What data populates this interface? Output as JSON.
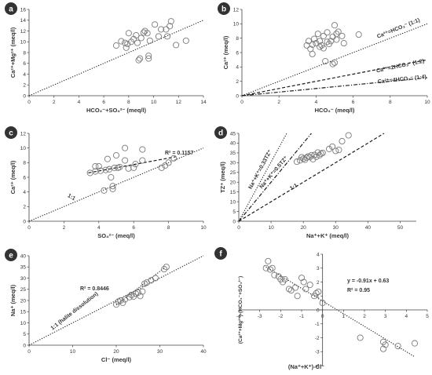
{
  "colors": {
    "marker": "#7a7a7a",
    "axis": "#404040",
    "text": "#333333",
    "badge": "#333333"
  },
  "chart_data": [
    {
      "panel": "a",
      "type": "scatter",
      "xlabel": "HCO₃⁻+SO₄²⁻ (meq/l)",
      "ylabel": "Ca²⁺+Mg²⁺ (meq/l)",
      "xlim": [
        0,
        14
      ],
      "ylim": [
        0,
        16
      ],
      "xticks": [
        0,
        2,
        4,
        6,
        8,
        10,
        12,
        14
      ],
      "yticks": [
        0,
        2,
        4,
        6,
        8,
        10,
        12,
        14,
        16
      ],
      "lines": [
        {
          "label": "",
          "style": "dotted",
          "points": [
            [
              0,
              0
            ],
            [
              14,
              14
            ]
          ]
        }
      ],
      "points": [
        [
          7.0,
          9.3
        ],
        [
          7.4,
          10.1
        ],
        [
          7.7,
          9.8
        ],
        [
          7.8,
          8.9
        ],
        [
          7.9,
          9.6
        ],
        [
          8.0,
          11.6
        ],
        [
          8.2,
          10.0
        ],
        [
          8.4,
          10.5
        ],
        [
          8.6,
          11.2
        ],
        [
          8.7,
          9.8
        ],
        [
          8.8,
          6.6
        ],
        [
          8.9,
          6.9
        ],
        [
          9.0,
          10.7
        ],
        [
          9.2,
          11.7
        ],
        [
          9.3,
          12.0
        ],
        [
          9.5,
          11.6
        ],
        [
          9.6,
          7.4
        ],
        [
          9.6,
          6.9
        ],
        [
          9.7,
          10.2
        ],
        [
          10.1,
          13.2
        ],
        [
          10.4,
          11.0
        ],
        [
          10.6,
          12.3
        ],
        [
          11.0,
          12.3
        ],
        [
          11.1,
          11.0
        ],
        [
          11.3,
          12.9
        ],
        [
          11.4,
          13.8
        ],
        [
          11.8,
          9.4
        ],
        [
          12.6,
          10.2
        ]
      ]
    },
    {
      "panel": "b",
      "type": "scatter",
      "xlabel": "HCO₃⁻ (meq/l)",
      "ylabel": "Ca²⁺ (meq/l)",
      "xlim": [
        0,
        10
      ],
      "ylim": [
        0,
        12
      ],
      "xticks": [
        0,
        2,
        4,
        6,
        8,
        10
      ],
      "yticks": [
        0,
        2,
        4,
        6,
        8,
        10,
        12
      ],
      "lines": [
        {
          "label": "Ca²⁺=HCO₃⁻ (1:1)",
          "style": "dotted",
          "points": [
            [
              0,
              0
            ],
            [
              10,
              10
            ]
          ]
        },
        {
          "label": "Ca²⁺=2HCO₃⁻ (1:2)",
          "style": "dashed",
          "points": [
            [
              0,
              0
            ],
            [
              10,
              5
            ]
          ]
        },
        {
          "label": "Ca²⁺=4HCO₃⁻ (1:4)",
          "style": "dashdot",
          "points": [
            [
              0,
              0
            ],
            [
              10,
              2.5
            ]
          ]
        }
      ],
      "points": [
        [
          3.5,
          7.0
        ],
        [
          3.6,
          7.6
        ],
        [
          3.7,
          6.5
        ],
        [
          3.8,
          5.8
        ],
        [
          3.8,
          7.1
        ],
        [
          3.9,
          7.9
        ],
        [
          4.0,
          7.3
        ],
        [
          4.1,
          8.6
        ],
        [
          4.2,
          6.8
        ],
        [
          4.2,
          7.6
        ],
        [
          4.3,
          7.0
        ],
        [
          4.4,
          8.3
        ],
        [
          4.4,
          6.6
        ],
        [
          4.5,
          4.8
        ],
        [
          4.6,
          7.5
        ],
        [
          4.6,
          8.8
        ],
        [
          4.7,
          7.2
        ],
        [
          4.8,
          7.6
        ],
        [
          4.9,
          4.4
        ],
        [
          4.9,
          8.2
        ],
        [
          5.0,
          9.8
        ],
        [
          5.0,
          4.6
        ],
        [
          5.1,
          8.6
        ],
        [
          5.1,
          7.8
        ],
        [
          5.2,
          8.9
        ],
        [
          5.4,
          8.3
        ],
        [
          5.5,
          7.3
        ],
        [
          6.3,
          8.5
        ]
      ]
    },
    {
      "panel": "c",
      "type": "scatter",
      "xlabel": "SO₄²⁻ (meq/l)",
      "ylabel": "Ca²⁺ (meq/l)",
      "xlim": [
        0,
        10
      ],
      "ylim": [
        0,
        12
      ],
      "xticks": [
        0,
        2,
        4,
        6,
        8,
        10
      ],
      "yticks": [
        0,
        2,
        4,
        6,
        8,
        10,
        12
      ],
      "annotation": "R² = 0.1157",
      "lines": [
        {
          "label": "1:1",
          "style": "dotted",
          "points": [
            [
              0,
              0
            ],
            [
              10,
              10
            ]
          ]
        },
        {
          "label": "",
          "style": "dashed",
          "points": [
            [
              3.4,
              6.6
            ],
            [
              8.4,
              8.8
            ]
          ]
        }
      ],
      "points": [
        [
          3.5,
          6.6
        ],
        [
          3.8,
          6.8
        ],
        [
          3.8,
          7.5
        ],
        [
          4.0,
          7.5
        ],
        [
          4.1,
          6.9
        ],
        [
          4.3,
          4.2
        ],
        [
          4.4,
          7.0
        ],
        [
          4.5,
          8.5
        ],
        [
          4.6,
          7.1
        ],
        [
          4.7,
          6.0
        ],
        [
          4.8,
          4.8
        ],
        [
          4.8,
          4.4
        ],
        [
          4.9,
          7.3
        ],
        [
          5.0,
          9.0
        ],
        [
          5.1,
          7.3
        ],
        [
          5.2,
          7.4
        ],
        [
          5.5,
          10.0
        ],
        [
          5.5,
          8.3
        ],
        [
          5.7,
          7.2
        ],
        [
          6.0,
          7.3
        ],
        [
          6.1,
          7.8
        ],
        [
          6.5,
          9.8
        ],
        [
          6.5,
          8.3
        ],
        [
          7.6,
          7.3
        ],
        [
          7.8,
          7.6
        ],
        [
          8.0,
          8.0
        ],
        [
          8.3,
          8.6
        ]
      ]
    },
    {
      "panel": "d",
      "type": "scatter",
      "xlabel": "Na⁺+K⁺ (meq/l)",
      "ylabel": "TZ⁺ (meq/l)",
      "xlim": [
        0,
        55
      ],
      "ylim": [
        0,
        45
      ],
      "xticks": [
        0,
        10,
        20,
        30,
        40,
        50
      ],
      "yticks": [
        0,
        5,
        10,
        15,
        20,
        25,
        30,
        35,
        40,
        45
      ],
      "lines": [
        {
          "label": "Na⁺+K⁺=0.33TZ⁺",
          "style": "dotted",
          "points": [
            [
              0,
              0
            ],
            [
              14.85,
              45
            ]
          ]
        },
        {
          "label": "Na⁺+K⁺=0.5TZ⁺",
          "style": "dashdot",
          "points": [
            [
              0,
              0
            ],
            [
              22.5,
              45
            ]
          ]
        },
        {
          "label": "1:1",
          "style": "dashed",
          "points": [
            [
              0,
              0
            ],
            [
              45,
              45
            ]
          ]
        }
      ],
      "points": [
        [
          18.0,
          30.5
        ],
        [
          19.0,
          31.2
        ],
        [
          19.5,
          32.8
        ],
        [
          20.0,
          32.0
        ],
        [
          20.5,
          31.5
        ],
        [
          21.0,
          32.6
        ],
        [
          21.5,
          33.2
        ],
        [
          22.0,
          32.8
        ],
        [
          22.5,
          33.8
        ],
        [
          23.0,
          31.8
        ],
        [
          23.5,
          34.0
        ],
        [
          24.0,
          33.0
        ],
        [
          24.5,
          35.2
        ],
        [
          25.0,
          33.8
        ],
        [
          25.5,
          34.6
        ],
        [
          26.0,
          35.0
        ],
        [
          28.0,
          37.0
        ],
        [
          29.0,
          38.2
        ],
        [
          30.0,
          36.0
        ],
        [
          31.0,
          36.5
        ],
        [
          32.0,
          41.0
        ],
        [
          34.0,
          44.0
        ]
      ]
    },
    {
      "panel": "e",
      "type": "scatter",
      "xlabel": "Cl⁻ (meq/l)",
      "ylabel": "Na⁺ (meq/l)",
      "xlim": [
        0,
        40
      ],
      "ylim": [
        0,
        40
      ],
      "xticks": [
        0,
        10,
        20,
        30,
        40
      ],
      "yticks": [
        0,
        5,
        10,
        15,
        20,
        25,
        30,
        35,
        40
      ],
      "annotation": "R² = 0.8446",
      "lines": [
        {
          "label": "1:1 (halite dissolution)",
          "style": "dotted",
          "points": [
            [
              0,
              0
            ],
            [
              40,
              40
            ]
          ]
        },
        {
          "label": "",
          "style": "dotted",
          "points": [
            [
              20,
              18
            ],
            [
              31,
              34.5
            ]
          ]
        }
      ],
      "points": [
        [
          20.0,
          18.2
        ],
        [
          20.5,
          19.5
        ],
        [
          21.0,
          20.0
        ],
        [
          21.5,
          19.0
        ],
        [
          22.0,
          20.5
        ],
        [
          23.0,
          21.5
        ],
        [
          23.5,
          22.5
        ],
        [
          24.0,
          21.8
        ],
        [
          24.5,
          23.0
        ],
        [
          25.0,
          23.5
        ],
        [
          25.5,
          22.0
        ],
        [
          26.0,
          24.0
        ],
        [
          26.5,
          27.5
        ],
        [
          27.0,
          28.0
        ],
        [
          28.0,
          29.0
        ],
        [
          29.0,
          30.0
        ],
        [
          31.0,
          34.0
        ],
        [
          31.5,
          35.0
        ]
      ]
    },
    {
      "panel": "f",
      "type": "scatter",
      "xlabel": "(Na⁺+K⁺)-Cl⁻",
      "ylabel": "(Ca²⁺+Mg²⁺)-(HCO₃⁻+SO₄²⁻)",
      "xlim": [
        -4,
        5
      ],
      "ylim": [
        -4,
        4
      ],
      "xticks": [
        -4,
        -3,
        -2,
        -1,
        0,
        1,
        2,
        3,
        4,
        5
      ],
      "yticks": [
        -4,
        -3,
        -2,
        -1,
        0,
        1,
        2,
        3,
        4
      ],
      "annotation": "y = -0.91x + 0.63",
      "annotation2": "R² = 0.95",
      "lines": [
        {
          "label": "",
          "style": "dotted",
          "points": [
            [
              -2.8,
              3.18
            ],
            [
              4.4,
              -3.37
            ]
          ]
        }
      ],
      "points": [
        [
          -2.7,
          3.0
        ],
        [
          -2.6,
          3.5
        ],
        [
          -2.5,
          2.9
        ],
        [
          -2.4,
          3.0
        ],
        [
          -2.3,
          2.5
        ],
        [
          -2.1,
          2.4
        ],
        [
          -2.0,
          2.2
        ],
        [
          -1.9,
          2.0
        ],
        [
          -1.8,
          2.2
        ],
        [
          -1.6,
          1.5
        ],
        [
          -1.5,
          1.4
        ],
        [
          -1.3,
          1.6
        ],
        [
          -1.2,
          1.0
        ],
        [
          -1.0,
          2.3
        ],
        [
          -0.9,
          2.0
        ],
        [
          -0.8,
          1.5
        ],
        [
          -0.6,
          1.8
        ],
        [
          -0.4,
          1.0
        ],
        [
          -0.3,
          1.2
        ],
        [
          -0.2,
          1.3
        ],
        [
          0.0,
          0.5
        ],
        [
          1.8,
          -2.0
        ],
        [
          2.9,
          -2.3
        ],
        [
          2.9,
          -2.8
        ],
        [
          3.0,
          -2.5
        ],
        [
          3.6,
          -2.6
        ],
        [
          4.4,
          -2.4
        ]
      ]
    }
  ]
}
